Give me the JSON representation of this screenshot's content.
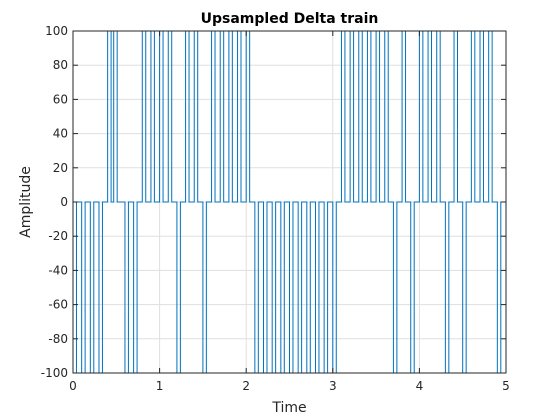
{
  "chart_data": {
    "type": "line",
    "title": "Upsampled Delta train",
    "xlabel": "Time",
    "ylabel": "Amplitude",
    "xlim": [
      0,
      5
    ],
    "ylim": [
      -100,
      100
    ],
    "xticks": [
      0,
      1,
      2,
      3,
      4,
      5
    ],
    "yticks": [
      -100,
      -80,
      -60,
      -40,
      -20,
      0,
      20,
      40,
      60,
      80,
      100
    ],
    "grid": true,
    "series": [
      {
        "name": "delta train",
        "color": "#0072BD",
        "pulse_width": 0.04,
        "pulse_starts": [
          0.0,
          0.1,
          0.2,
          0.3,
          0.4,
          0.47,
          0.6,
          0.7,
          0.8,
          0.9,
          1.0,
          1.1,
          1.2,
          1.3,
          1.4,
          1.5,
          1.6,
          1.7,
          1.8,
          1.9,
          2.0,
          2.1,
          2.2,
          2.3,
          2.4,
          2.5,
          2.6,
          2.7,
          2.8,
          2.9,
          3.0,
          3.1,
          3.2,
          3.3,
          3.4,
          3.5,
          3.6,
          3.7,
          3.8,
          3.9,
          4.0,
          4.1,
          4.2,
          4.3,
          4.4,
          4.5,
          4.6,
          4.7,
          4.8,
          4.9
        ],
        "pulse_values": [
          -100,
          -100,
          -100,
          -100,
          100,
          100,
          -100,
          -100,
          100,
          100,
          100,
          100,
          -100,
          100,
          100,
          -100,
          100,
          100,
          100,
          100,
          100,
          -100,
          -100,
          -100,
          -100,
          -100,
          -100,
          -100,
          -100,
          -100,
          -100,
          100,
          100,
          100,
          100,
          100,
          100,
          -100,
          100,
          -100,
          100,
          100,
          100,
          -100,
          100,
          -100,
          100,
          100,
          100,
          -100
        ]
      }
    ]
  }
}
